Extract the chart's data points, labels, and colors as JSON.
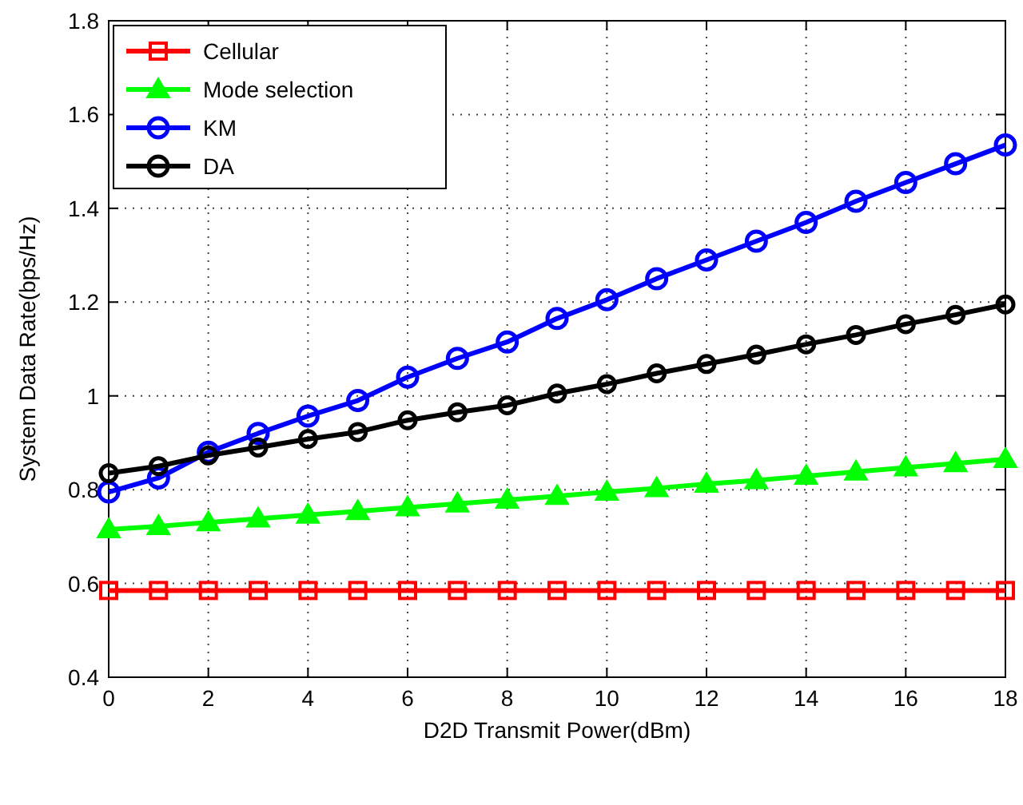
{
  "chart_data": {
    "type": "line",
    "xlabel": "D2D Transmit Power(dBm)",
    "ylabel": "System Data Rate(bps/Hz)",
    "x": [
      0,
      1,
      2,
      3,
      4,
      5,
      6,
      7,
      8,
      9,
      10,
      11,
      12,
      13,
      14,
      15,
      16,
      17,
      18
    ],
    "series": [
      {
        "name": "Cellular",
        "color": "#ff0000",
        "marker": "square",
        "values": [
          0.585,
          0.585,
          0.585,
          0.585,
          0.585,
          0.585,
          0.585,
          0.585,
          0.585,
          0.585,
          0.585,
          0.585,
          0.585,
          0.585,
          0.585,
          0.585,
          0.585,
          0.585,
          0.585
        ]
      },
      {
        "name": "Mode selection",
        "color": "#00ff00",
        "marker": "triangle",
        "values": [
          0.715,
          0.722,
          0.73,
          0.738,
          0.746,
          0.754,
          0.762,
          0.77,
          0.778,
          0.786,
          0.795,
          0.803,
          0.812,
          0.82,
          0.829,
          0.838,
          0.847,
          0.856,
          0.865
        ]
      },
      {
        "name": "KM",
        "color": "#0000ff",
        "marker": "circle",
        "values": [
          0.795,
          0.825,
          0.88,
          0.92,
          0.957,
          0.99,
          1.04,
          1.08,
          1.115,
          1.165,
          1.205,
          1.25,
          1.29,
          1.33,
          1.37,
          1.415,
          1.455,
          1.495,
          1.535
        ]
      },
      {
        "name": "DA",
        "color": "#000000",
        "marker": "circle",
        "values": [
          0.835,
          0.85,
          0.873,
          0.89,
          0.908,
          0.923,
          0.948,
          0.965,
          0.98,
          1.005,
          1.025,
          1.048,
          1.068,
          1.088,
          1.11,
          1.13,
          1.153,
          1.173,
          1.195
        ]
      }
    ],
    "xlim": [
      0,
      18
    ],
    "xticks": [
      0,
      2,
      4,
      6,
      8,
      10,
      12,
      14,
      16,
      18
    ],
    "ylim": [
      0.4,
      1.8
    ],
    "yticks": [
      0.4,
      0.6,
      0.8,
      1,
      1.2,
      1.4,
      1.6,
      1.8
    ],
    "grid": true,
    "legend": "top left",
    "line_style": "solid"
  }
}
